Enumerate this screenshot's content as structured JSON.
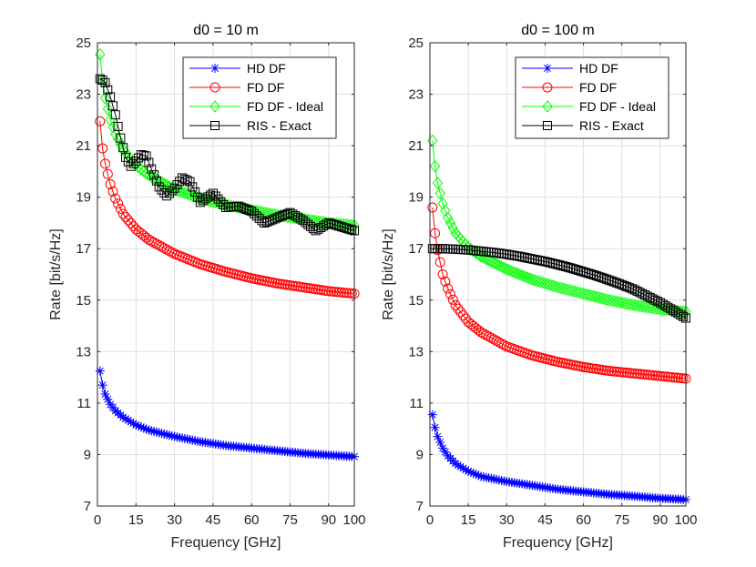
{
  "chart_data": [
    {
      "type": "line",
      "title": "d0 = 10 m",
      "xlabel": "Frequency [GHz]",
      "ylabel": "Rate [bit/s/Hz]",
      "xlim": [
        0,
        100
      ],
      "ylim": [
        7,
        25
      ],
      "xticks": [
        "0",
        "15",
        "30",
        "45",
        "60",
        "75",
        "90",
        "100"
      ],
      "yticks": [
        "7",
        "9",
        "11",
        "13",
        "15",
        "17",
        "19",
        "21",
        "23",
        "25"
      ],
      "grid": true,
      "legend_location": "top-right",
      "series": [
        {
          "name": "HD DF",
          "color": "#0000ff",
          "marker": "asterisk",
          "x": [
            1,
            2,
            3,
            5,
            7,
            10,
            15,
            20,
            30,
            40,
            50,
            60,
            70,
            80,
            90,
            100
          ],
          "values": [
            12.25,
            11.7,
            11.35,
            10.95,
            10.7,
            10.45,
            10.15,
            9.95,
            9.7,
            9.5,
            9.35,
            9.25,
            9.15,
            9.05,
            8.98,
            8.92
          ]
        },
        {
          "name": "FD DF",
          "color": "#ff0000",
          "marker": "circle",
          "x": [
            1,
            2,
            3,
            5,
            7,
            10,
            15,
            20,
            30,
            40,
            50,
            60,
            70,
            80,
            90,
            100
          ],
          "values": [
            21.95,
            20.9,
            20.3,
            19.5,
            18.95,
            18.35,
            17.75,
            17.35,
            16.8,
            16.4,
            16.1,
            15.85,
            15.65,
            15.5,
            15.35,
            15.25
          ]
        },
        {
          "name": "FD DF - Ideal",
          "color": "#00ff00",
          "marker": "diamond",
          "x": [
            1,
            2,
            3,
            5,
            7,
            10,
            15,
            20,
            30,
            40,
            50,
            60,
            70,
            80,
            90,
            100
          ],
          "values": [
            24.55,
            23.5,
            22.85,
            22.0,
            21.45,
            20.85,
            20.25,
            19.85,
            19.3,
            18.95,
            18.7,
            18.5,
            18.3,
            18.15,
            18.0,
            17.9
          ]
        },
        {
          "name": "RIS - Exact",
          "color": "#000000",
          "marker": "square",
          "x": [
            1,
            2,
            3,
            5,
            7,
            9,
            11,
            13,
            15,
            17,
            19,
            21,
            24,
            27,
            30,
            33,
            36,
            40,
            45,
            50,
            55,
            60,
            65,
            70,
            75,
            80,
            85,
            90,
            95,
            100
          ],
          "values": [
            23.6,
            23.55,
            23.45,
            22.9,
            22.2,
            21.3,
            20.55,
            20.2,
            20.4,
            20.65,
            20.6,
            20.1,
            19.4,
            19.05,
            19.35,
            19.75,
            19.6,
            18.8,
            19.15,
            18.6,
            18.65,
            18.45,
            18.0,
            18.2,
            18.4,
            18.1,
            17.7,
            18.0,
            17.85,
            17.7
          ]
        }
      ]
    },
    {
      "type": "line",
      "title": "d0 = 100 m",
      "xlabel": "Frequency [GHz]",
      "ylabel": "Rate [bit/s/Hz]",
      "xlim": [
        0,
        100
      ],
      "ylim": [
        7,
        25
      ],
      "xticks": [
        "0",
        "15",
        "30",
        "45",
        "60",
        "75",
        "90",
        "100"
      ],
      "yticks": [
        "7",
        "9",
        "11",
        "13",
        "15",
        "17",
        "19",
        "21",
        "23",
        "25"
      ],
      "grid": true,
      "legend_location": "top-right",
      "series": [
        {
          "name": "HD DF",
          "color": "#0000ff",
          "marker": "asterisk",
          "x": [
            1,
            2,
            3,
            5,
            7,
            10,
            15,
            20,
            30,
            40,
            50,
            60,
            70,
            80,
            90,
            100
          ],
          "values": [
            10.55,
            10.05,
            9.7,
            9.25,
            8.95,
            8.65,
            8.35,
            8.15,
            7.95,
            7.8,
            7.65,
            7.55,
            7.45,
            7.38,
            7.3,
            7.25
          ]
        },
        {
          "name": "FD DF",
          "color": "#ff0000",
          "marker": "circle",
          "x": [
            1,
            2,
            3,
            5,
            7,
            10,
            15,
            20,
            30,
            40,
            50,
            60,
            70,
            80,
            90,
            100
          ],
          "values": [
            18.6,
            17.6,
            16.95,
            16.0,
            15.45,
            14.8,
            14.15,
            13.75,
            13.2,
            12.85,
            12.6,
            12.4,
            12.25,
            12.15,
            12.05,
            11.95
          ]
        },
        {
          "name": "FD DF - Ideal",
          "color": "#00ff00",
          "marker": "diamond",
          "x": [
            1,
            2,
            3,
            5,
            7,
            10,
            15,
            20,
            30,
            40,
            50,
            60,
            70,
            80,
            90,
            100
          ],
          "values": [
            21.2,
            20.2,
            19.55,
            18.75,
            18.2,
            17.6,
            17.05,
            16.7,
            16.2,
            15.8,
            15.5,
            15.25,
            15.0,
            14.8,
            14.65,
            14.55
          ]
        },
        {
          "name": "RIS - Exact",
          "color": "#000000",
          "marker": "square",
          "x": [
            1,
            5,
            10,
            15,
            20,
            25,
            30,
            35,
            40,
            45,
            50,
            55,
            60,
            65,
            70,
            75,
            80,
            85,
            90,
            95,
            100
          ],
          "values": [
            17.0,
            17.0,
            16.98,
            16.95,
            16.9,
            16.85,
            16.78,
            16.7,
            16.6,
            16.5,
            16.38,
            16.25,
            16.1,
            15.95,
            15.78,
            15.6,
            15.4,
            15.15,
            14.9,
            14.6,
            14.3
          ]
        }
      ]
    }
  ]
}
